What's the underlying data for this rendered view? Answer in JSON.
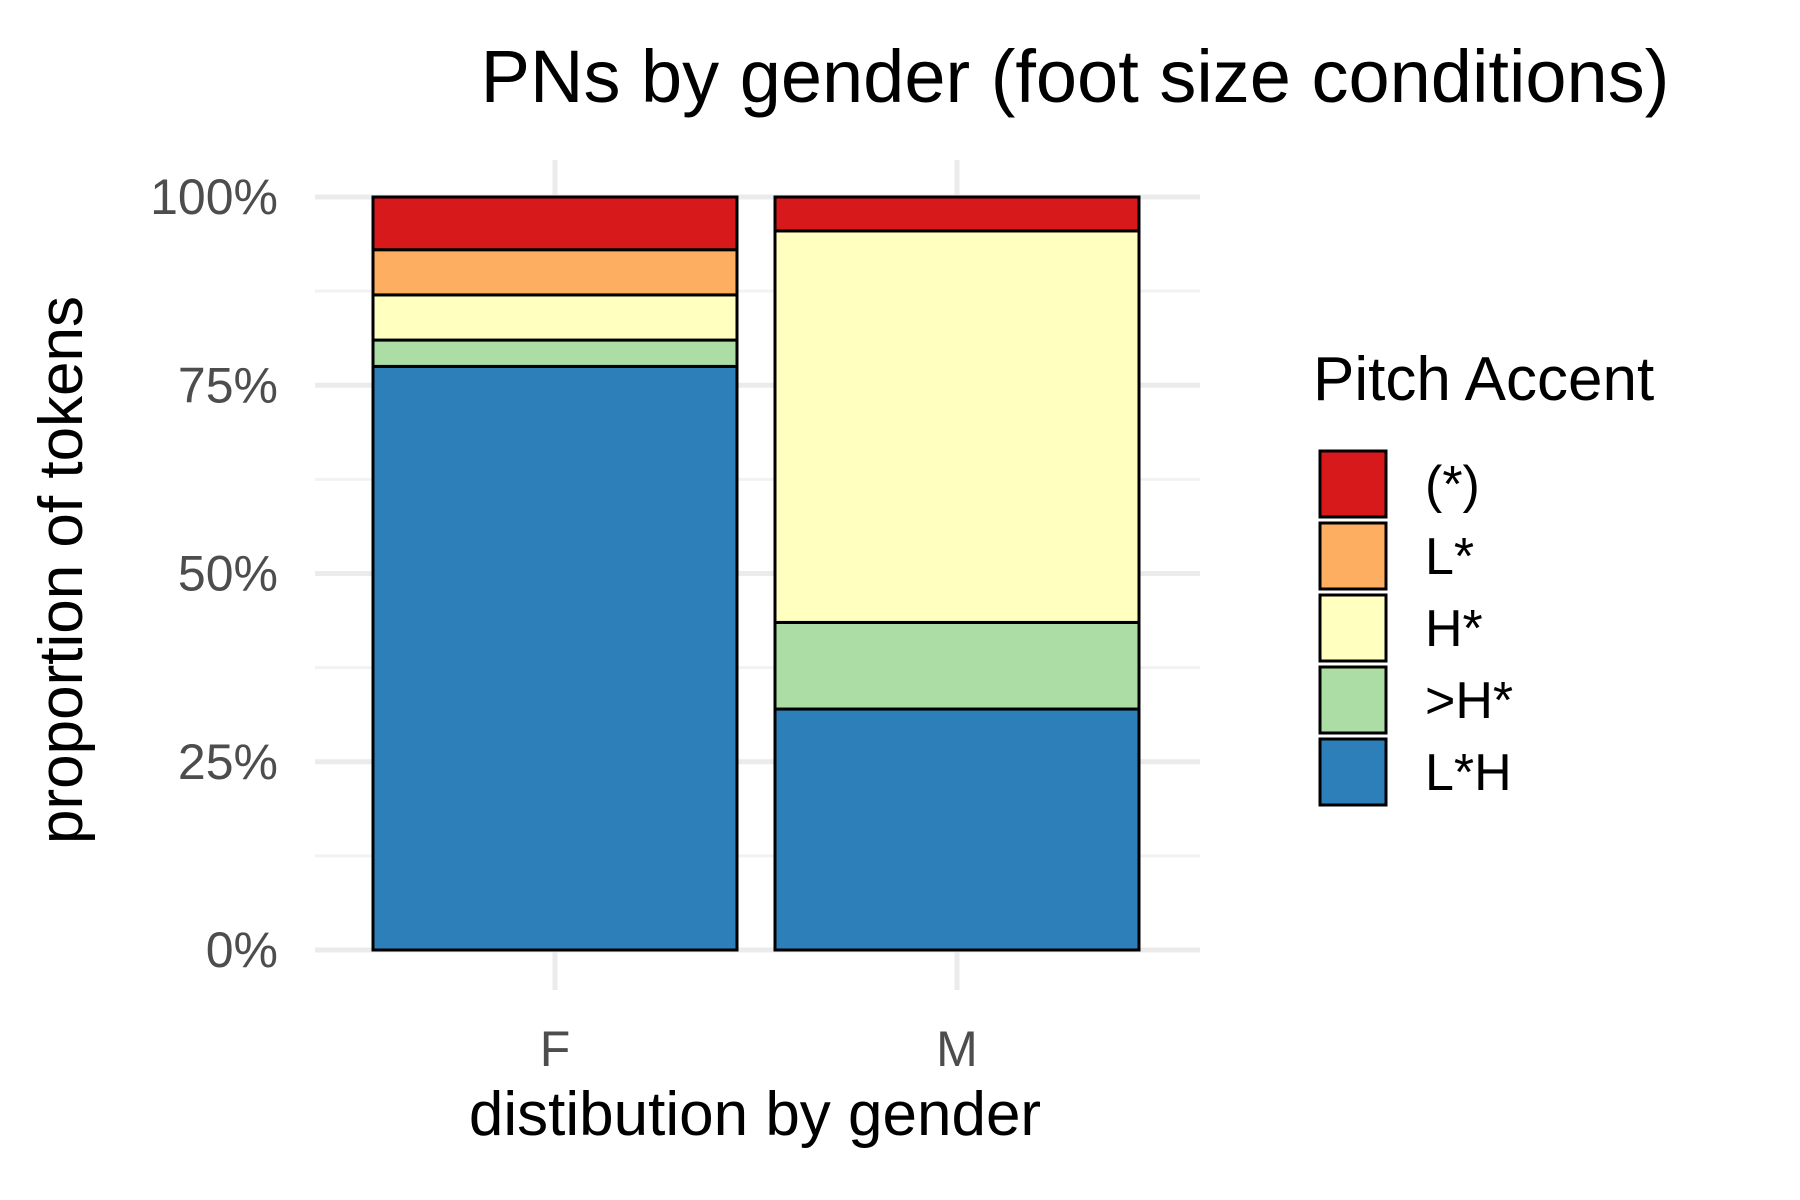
{
  "chart_data": {
    "type": "bar",
    "stacked": true,
    "title": "PNs by gender (foot size conditions)",
    "xlabel": "distibution by gender",
    "ylabel": "proportion of tokens",
    "categories": [
      "F",
      "M"
    ],
    "ylim": [
      0,
      1
    ],
    "yticks": [
      {
        "value": 0,
        "label": "0%"
      },
      {
        "value": 0.25,
        "label": "25%"
      },
      {
        "value": 0.5,
        "label": "50%"
      },
      {
        "value": 0.75,
        "label": "75%"
      },
      {
        "value": 1,
        "label": "100%"
      }
    ],
    "grid": true,
    "legend": {
      "title": "Pitch Accent",
      "position": "right"
    },
    "series": [
      {
        "name": "L*H",
        "color": "#2c7fb8",
        "values": [
          0.775,
          0.32
        ]
      },
      {
        "name": ">H*",
        "color": "#abdda4",
        "values": [
          0.035,
          0.115
        ]
      },
      {
        "name": "H*",
        "color": "#ffffbf",
        "values": [
          0.06,
          0.52
        ]
      },
      {
        "name": "L*",
        "color": "#fdae61",
        "values": [
          0.06,
          0.0
        ]
      },
      {
        "name": "(*)",
        "color": "#d7191c",
        "values": [
          0.07,
          0.045
        ]
      }
    ]
  }
}
